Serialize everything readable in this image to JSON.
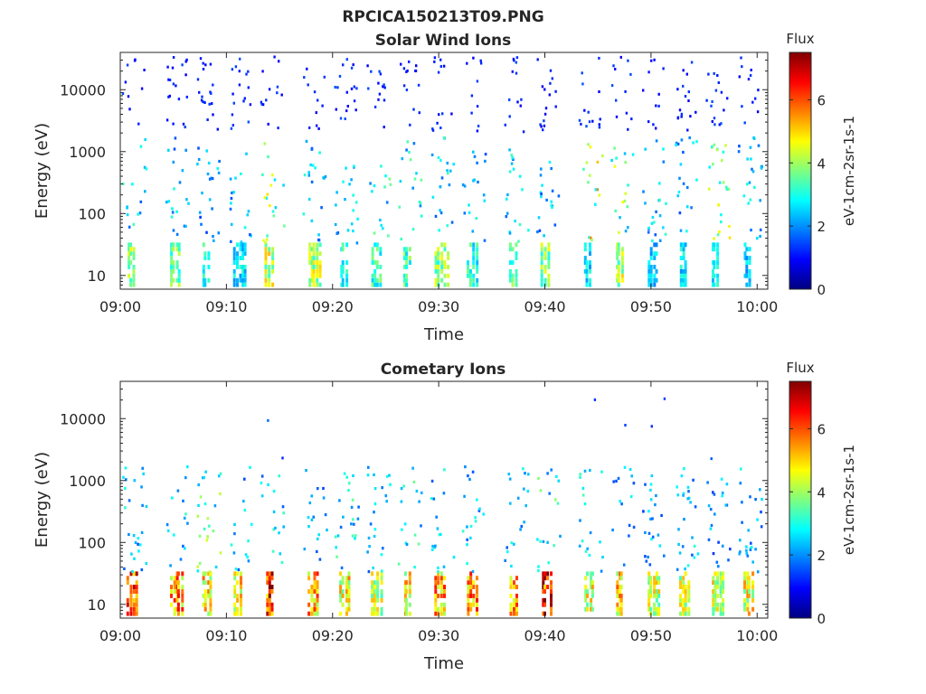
{
  "figure": {
    "title": "RPCICA150213T09.PNG"
  },
  "colormap": {
    "name": "jet",
    "stops": [
      "#00007f",
      "#0000ff",
      "#007fff",
      "#00ffff",
      "#7fff7f",
      "#ffff00",
      "#ff7f00",
      "#ff0000",
      "#7f0000"
    ]
  },
  "chart_data": [
    {
      "type": "heatmap",
      "title": "Solar Wind Ions",
      "xlabel": "Time",
      "ylabel": "Energy (eV)",
      "x_tick_labels": [
        "09:00",
        "09:10",
        "09:20",
        "09:30",
        "09:40",
        "09:50",
        "10:00"
      ],
      "xlim": [
        "09:00",
        "10:01"
      ],
      "y_scale": "log",
      "y_tick_labels": [
        "10",
        "100",
        "1000",
        "10000"
      ],
      "y_ticks": [
        10,
        100,
        1000,
        10000
      ],
      "ylim": [
        6,
        40000
      ],
      "colorbar": {
        "label_title": "Flux",
        "label_units": "eV-1cm-2sr-1s-1",
        "ticks": [
          "0",
          "2",
          "4",
          "6"
        ],
        "range": [
          0,
          7.5
        ]
      },
      "grid": false,
      "bursts": [
        {
          "t": "09:01",
          "low_flux": 4.2,
          "mid_flux": 2.6,
          "high_flux": 1.2
        },
        {
          "t": "09:05",
          "low_flux": 3.8,
          "mid_flux": 2.4,
          "high_flux": 1.2
        },
        {
          "t": "09:08",
          "low_flux": 3.4,
          "mid_flux": 2.2,
          "high_flux": 1.1
        },
        {
          "t": "09:11",
          "low_flux": 2.8,
          "mid_flux": 2.3,
          "high_flux": 1.2
        },
        {
          "t": "09:14",
          "low_flux": 4.6,
          "mid_flux": 3.9,
          "high_flux": 1.2
        },
        {
          "t": "09:18",
          "low_flux": 4.4,
          "mid_flux": 2.6,
          "high_flux": 1.1
        },
        {
          "t": "09:21",
          "low_flux": 3.2,
          "mid_flux": 2.4,
          "high_flux": 1.2
        },
        {
          "t": "09:24",
          "low_flux": 3.4,
          "mid_flux": 2.9,
          "high_flux": 1.2
        },
        {
          "t": "09:27",
          "low_flux": 3.6,
          "mid_flux": 2.8,
          "high_flux": 1.1
        },
        {
          "t": "09:30",
          "low_flux": 4.0,
          "mid_flux": 2.6,
          "high_flux": 1.1
        },
        {
          "t": "09:33",
          "low_flux": 3.3,
          "mid_flux": 2.5,
          "high_flux": 1.2
        },
        {
          "t": "09:37",
          "low_flux": 3.6,
          "mid_flux": 2.6,
          "high_flux": 1.2
        },
        {
          "t": "09:40",
          "low_flux": 4.2,
          "mid_flux": 2.3,
          "high_flux": 1.1
        },
        {
          "t": "09:44",
          "low_flux": 2.8,
          "mid_flux": 4.4,
          "high_flux": 1.2
        },
        {
          "t": "09:47",
          "low_flux": 4.4,
          "mid_flux": 3.6,
          "high_flux": 1.2
        },
        {
          "t": "09:50",
          "low_flux": 2.6,
          "mid_flux": 2.6,
          "high_flux": 1.1
        },
        {
          "t": "09:53",
          "low_flux": 2.8,
          "mid_flux": 2.3,
          "high_flux": 1.2
        },
        {
          "t": "09:56",
          "low_flux": 3.0,
          "mid_flux": 4.0,
          "high_flux": 1.2
        },
        {
          "t": "09:59",
          "low_flux": 2.6,
          "mid_flux": 2.4,
          "high_flux": 1.1
        }
      ]
    },
    {
      "type": "heatmap",
      "title": "Cometary Ions",
      "xlabel": "Time",
      "ylabel": "Energy (eV)",
      "x_tick_labels": [
        "09:00",
        "09:10",
        "09:20",
        "09:30",
        "09:40",
        "09:50",
        "10:00"
      ],
      "xlim": [
        "09:00",
        "10:01"
      ],
      "y_scale": "log",
      "y_tick_labels": [
        "10",
        "100",
        "1000",
        "10000"
      ],
      "y_ticks": [
        10,
        100,
        1000,
        10000
      ],
      "ylim": [
        6,
        40000
      ],
      "colorbar": {
        "label_title": "Flux",
        "label_units": "eV-1cm-2sr-1s-1",
        "ticks": [
          "0",
          "2",
          "4",
          "6"
        ],
        "range": [
          0,
          7.5
        ]
      },
      "grid": false,
      "bursts": [
        {
          "t": "09:01",
          "low_flux": 6.4,
          "mid_flux": 2.4,
          "high_flux": 0
        },
        {
          "t": "09:05",
          "low_flux": 5.8,
          "mid_flux": 2.6,
          "high_flux": 0
        },
        {
          "t": "09:08",
          "low_flux": 5.2,
          "mid_flux": 3.4,
          "high_flux": 0
        },
        {
          "t": "09:11",
          "low_flux": 5.0,
          "mid_flux": 2.4,
          "high_flux": 0
        },
        {
          "t": "09:14",
          "low_flux": 6.8,
          "mid_flux": 2.6,
          "high_flux": 1.4
        },
        {
          "t": "09:18",
          "low_flux": 5.6,
          "mid_flux": 2.3,
          "high_flux": 0
        },
        {
          "t": "09:21",
          "low_flux": 5.0,
          "mid_flux": 2.8,
          "high_flux": 0
        },
        {
          "t": "09:24",
          "low_flux": 4.6,
          "mid_flux": 2.4,
          "high_flux": 0
        },
        {
          "t": "09:27",
          "low_flux": 5.0,
          "mid_flux": 2.8,
          "high_flux": 0
        },
        {
          "t": "09:30",
          "low_flux": 5.6,
          "mid_flux": 2.4,
          "high_flux": 0
        },
        {
          "t": "09:33",
          "low_flux": 5.8,
          "mid_flux": 2.6,
          "high_flux": 0
        },
        {
          "t": "09:37",
          "low_flux": 5.6,
          "mid_flux": 2.4,
          "high_flux": 0
        },
        {
          "t": "09:40",
          "low_flux": 7.0,
          "mid_flux": 3.0,
          "high_flux": 0
        },
        {
          "t": "09:44",
          "low_flux": 4.8,
          "mid_flux": 2.6,
          "high_flux": 1.3
        },
        {
          "t": "09:47",
          "low_flux": 5.4,
          "mid_flux": 2.2,
          "high_flux": 1.3
        },
        {
          "t": "09:50",
          "low_flux": 4.6,
          "mid_flux": 2.2,
          "high_flux": 1.2
        },
        {
          "t": "09:53",
          "low_flux": 4.6,
          "mid_flux": 2.4,
          "high_flux": 0
        },
        {
          "t": "09:56",
          "low_flux": 4.8,
          "mid_flux": 2.2,
          "high_flux": 1.3
        },
        {
          "t": "09:59",
          "low_flux": 5.0,
          "mid_flux": 2.4,
          "high_flux": 0
        }
      ]
    }
  ]
}
